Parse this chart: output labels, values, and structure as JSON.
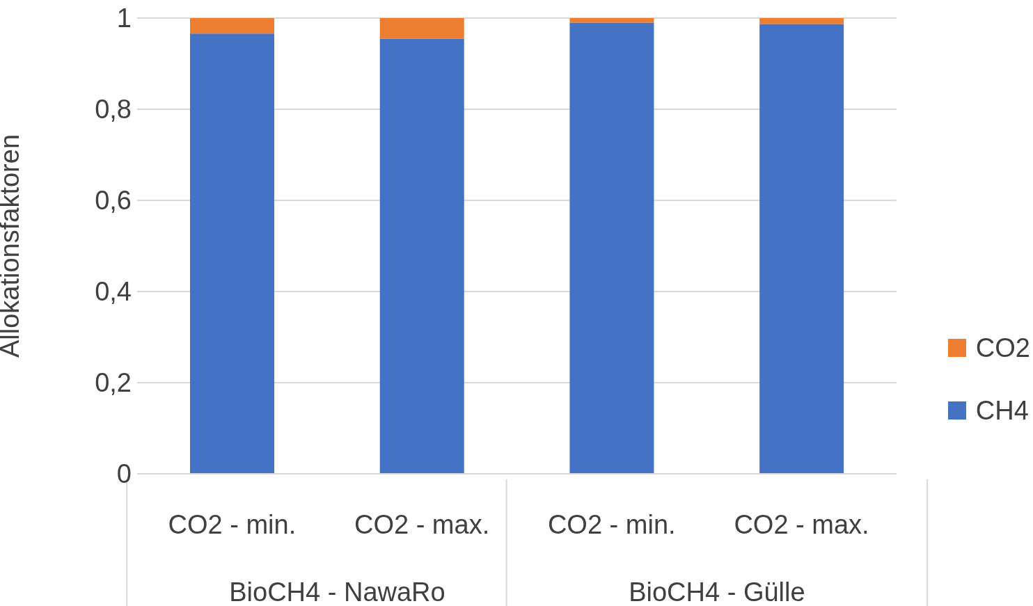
{
  "chart_data": {
    "type": "bar",
    "stacked": true,
    "ylabel": "Allokationsfaktoren",
    "categories": [
      "CO2 - min.",
      "CO2 - max.",
      "CO2 - min.",
      "CO2 - max."
    ],
    "annotations": [
      "BioCH4 - NawaRo",
      "BioCH4 - Gülle"
    ],
    "series": [
      {
        "name": "CH4",
        "color": "#4472c4",
        "values": [
          0.966,
          0.955,
          0.99,
          0.987
        ]
      },
      {
        "name": "CO2",
        "color": "#ed7d31",
        "values": [
          0.034,
          0.045,
          0.01,
          0.013
        ]
      }
    ],
    "ylim": [
      0,
      1
    ],
    "yticks": [
      {
        "value": 0,
        "label": "0"
      },
      {
        "value": 0.2,
        "label": "0,2"
      },
      {
        "value": 0.4,
        "label": "0,4"
      },
      {
        "value": 0.6,
        "label": "0,6"
      },
      {
        "value": 0.8,
        "label": "0,8"
      },
      {
        "value": 1,
        "label": "1"
      }
    ],
    "grid": "y",
    "legend": "right"
  }
}
